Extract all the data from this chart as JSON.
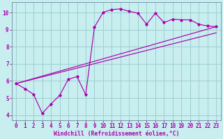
{
  "xlabel": "Windchill (Refroidissement éolien,°C)",
  "bg_color": "#c8eef0",
  "line_color": "#aa00aa",
  "grid_color": "#9ecfcf",
  "spine_color": "#7799aa",
  "xlim": [
    -0.5,
    23.5
  ],
  "ylim": [
    3.7,
    10.6
  ],
  "yticks": [
    4,
    5,
    6,
    7,
    8,
    9,
    10
  ],
  "xticks": [
    0,
    1,
    2,
    3,
    4,
    5,
    6,
    7,
    8,
    9,
    10,
    11,
    12,
    13,
    14,
    15,
    16,
    17,
    18,
    19,
    20,
    21,
    22,
    23
  ],
  "curve1_x": [
    0,
    1,
    2,
    3,
    4,
    5,
    6,
    7,
    8,
    9,
    10,
    11,
    12,
    13,
    14,
    15,
    16,
    17,
    18,
    19,
    20,
    21,
    22,
    23
  ],
  "curve1_y": [
    5.85,
    5.55,
    5.22,
    4.1,
    4.65,
    5.15,
    6.1,
    6.25,
    5.2,
    9.15,
    10.02,
    10.18,
    10.22,
    10.08,
    9.97,
    9.32,
    9.97,
    9.42,
    9.62,
    9.58,
    9.58,
    9.32,
    9.22,
    9.18
  ],
  "curve2_x": [
    0,
    23
  ],
  "curve2_y": [
    5.85,
    8.82
  ],
  "curve3_x": [
    0,
    23
  ],
  "curve3_y": [
    5.85,
    9.18
  ],
  "tick_fontsize": 5.5,
  "xlabel_fontsize": 5.8,
  "marker_size": 2.8,
  "linewidth": 0.85
}
